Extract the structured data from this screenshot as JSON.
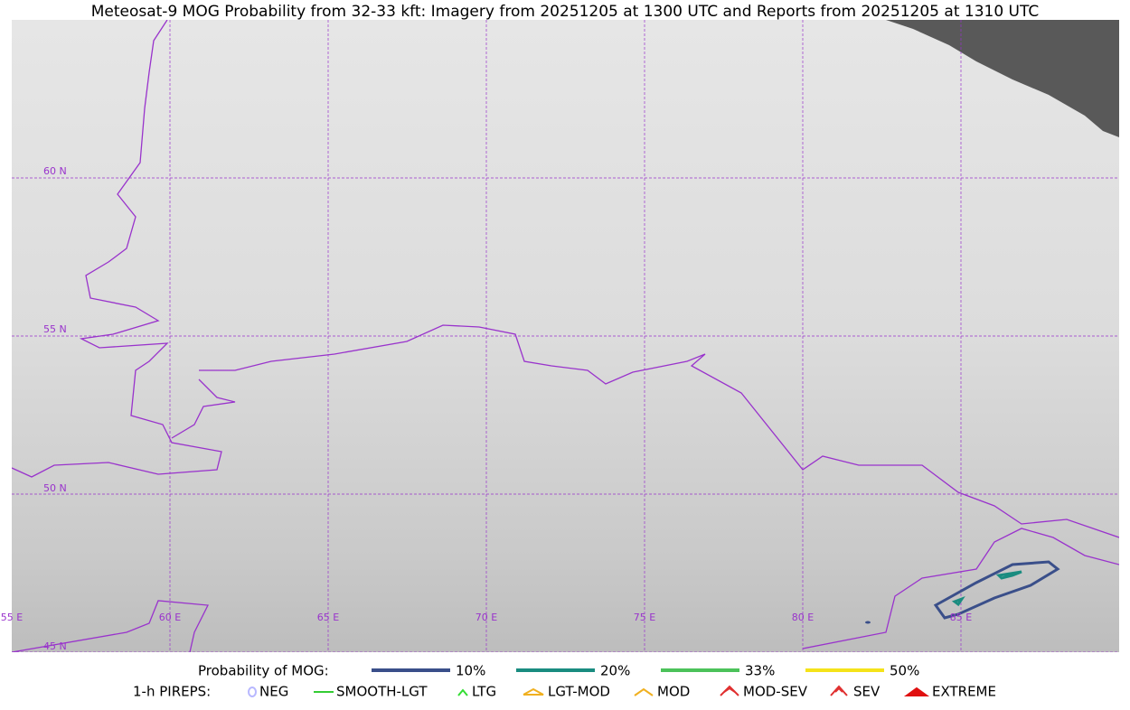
{
  "title": "Meteosat-9 MOG Probability from 32-33 kft: Imagery from 20251205 at 1300 UTC and Reports from 20251205 at 1310 UTC",
  "map": {
    "lat_labels": [
      "60 N",
      "55 N",
      "50 N",
      "45 N"
    ],
    "lon_labels": [
      "55 E",
      "60 E",
      "65 E",
      "70 E",
      "75 E",
      "80 E",
      "85 E"
    ]
  },
  "legend": {
    "probability": {
      "label": "Probability of MOG:",
      "items": [
        {
          "label": "10%",
          "color": "#3a4f8a"
        },
        {
          "label": "20%",
          "color": "#1a8c80"
        },
        {
          "label": "33%",
          "color": "#4cc25a"
        },
        {
          "label": "50%",
          "color": "#f5e31a"
        }
      ]
    },
    "pireps": {
      "label": "1-h PIREPS:",
      "items": [
        "NEG",
        "SMOOTH-LGT",
        "LTG",
        "LGT-MOD",
        "MOD",
        "MOD-SEV",
        "SEV",
        "EXTREME"
      ]
    }
  }
}
